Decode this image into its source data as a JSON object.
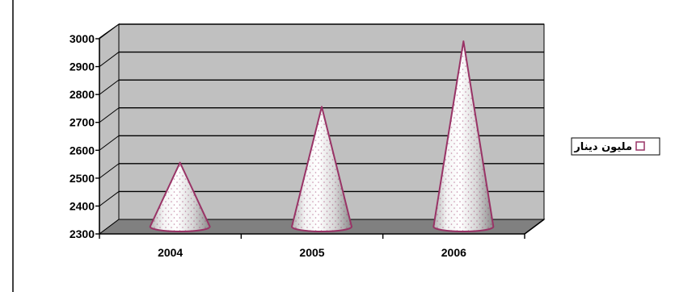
{
  "chart_data": {
    "type": "bar",
    "style": "3d-cone",
    "categories": [
      "2004",
      "2005",
      "2006"
    ],
    "series": [
      {
        "name": "مليون دينار",
        "values": [
          2530,
          2730,
          2965
        ]
      }
    ],
    "ylim": [
      2300,
      3000
    ],
    "yticks": [
      2300,
      2400,
      2500,
      2600,
      2700,
      2800,
      2900,
      3000
    ],
    "grid": true,
    "legend": "right",
    "colors": {
      "plot_wall": "#c0c0c0",
      "floor": "#808080",
      "cone_fill": "#ffffff",
      "cone_edge": "#993366",
      "cone_shade": "#8a8a8a",
      "gridline": "#000000"
    }
  }
}
